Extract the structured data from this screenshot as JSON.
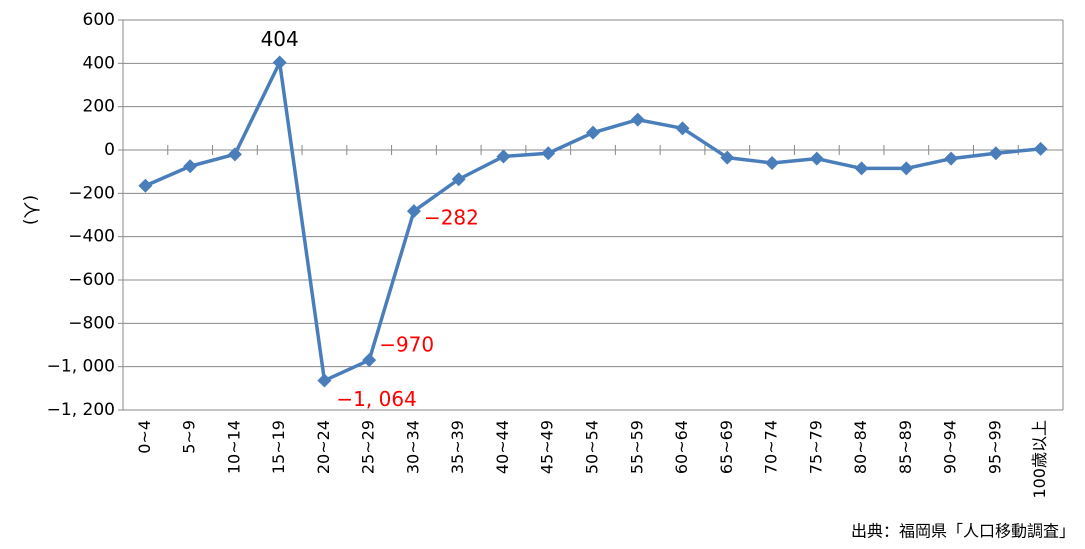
{
  "chart_data": {
    "type": "line",
    "y_label": "(人)",
    "source": "出典：福岡県「人口移動調査」",
    "categories": [
      "0~4",
      "5~9",
      "10~14",
      "15~19",
      "20~24",
      "25~29",
      "30~34",
      "35~39",
      "40~44",
      "45~49",
      "50~54",
      "55~59",
      "60~64",
      "65~69",
      "70~74",
      "75~79",
      "80~84",
      "85~89",
      "90~94",
      "95~99",
      "100歳以上"
    ],
    "series": [
      {
        "color": "#4a7ebb",
        "values": [
          -165,
          -75,
          -20,
          404,
          -1064,
          -970,
          -282,
          -135,
          -30,
          -15,
          80,
          140,
          100,
          -35,
          -60,
          -40,
          -85,
          -85,
          -40,
          -15,
          5
        ],
        "value_labels": [
          null,
          null,
          null,
          "404",
          "−1, 064",
          "−970",
          "−282",
          null,
          null,
          null,
          null,
          null,
          null,
          null,
          null,
          null,
          null,
          null,
          null,
          null,
          null
        ]
      }
    ],
    "ylim": [
      -1200,
      600
    ],
    "yticks": [
      600,
      400,
      200,
      0,
      {
        "value": -200,
        "label": "−200"
      },
      {
        "value": -400,
        "label": "−400"
      },
      {
        "value": -600,
        "label": "−600"
      },
      {
        "value": -800,
        "label": "−800"
      },
      {
        "value": -1000,
        "label": "−1, 000"
      },
      {
        "value": -1200,
        "label": "−1, 200"
      }
    ],
    "grid": true
  }
}
